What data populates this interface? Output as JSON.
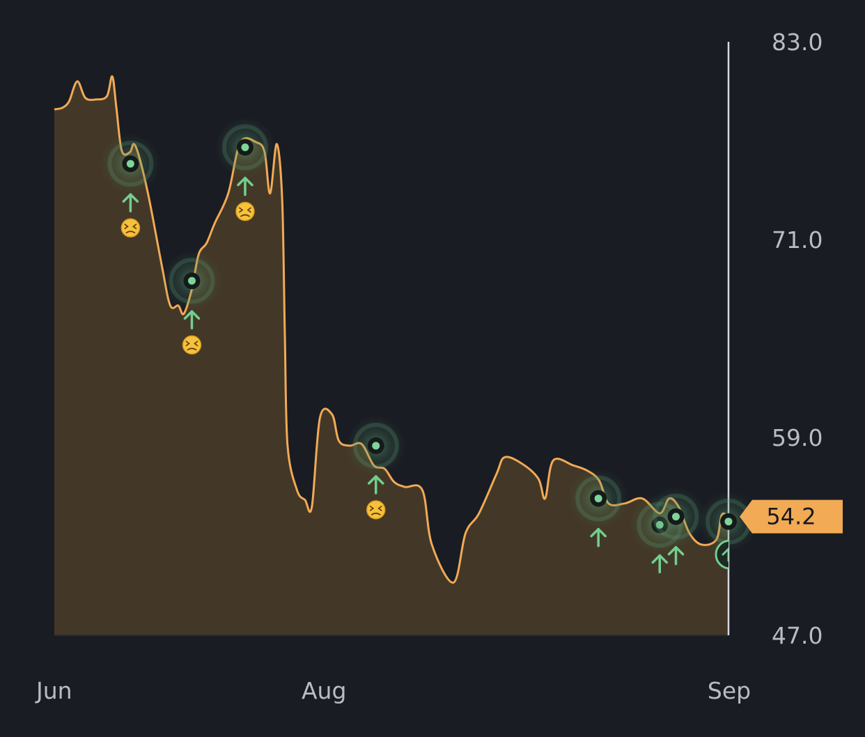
{
  "chart_data": {
    "type": "area",
    "y_ticks": [
      "83.0",
      "71.0",
      "59.0",
      "47.0"
    ],
    "ylim": [
      47,
      83
    ],
    "x_ticks": [
      {
        "label": "Jun",
        "t": 0
      },
      {
        "label": "Aug",
        "t": 0.4
      },
      {
        "label": "Sep",
        "t": 1.0
      }
    ],
    "current_value": "54.2",
    "colors": {
      "line": "#f2aa55",
      "fill": "#433828",
      "marker": "#7ed49a",
      "arrow": "#72cf8f",
      "axis": "#d6d8dc",
      "badge": "#f2aa55"
    },
    "series": [
      {
        "points": [
          [
            0.0,
            78.9
          ],
          [
            0.012,
            79.0
          ],
          [
            0.022,
            79.4
          ],
          [
            0.034,
            80.6
          ],
          [
            0.046,
            79.6
          ],
          [
            0.062,
            79.5
          ],
          [
            0.078,
            79.7
          ],
          [
            0.086,
            80.9
          ],
          [
            0.092,
            79.0
          ],
          [
            0.1,
            76.4
          ],
          [
            0.112,
            76.3
          ],
          [
            0.118,
            76.8
          ],
          [
            0.126,
            76.0
          ],
          [
            0.14,
            73.6
          ],
          [
            0.16,
            69.3
          ],
          [
            0.172,
            67.0
          ],
          [
            0.184,
            67.0
          ],
          [
            0.192,
            66.5
          ],
          [
            0.204,
            68.0
          ],
          [
            0.214,
            70.1
          ],
          [
            0.226,
            70.8
          ],
          [
            0.238,
            72.0
          ],
          [
            0.258,
            73.8
          ],
          [
            0.276,
            76.9
          ],
          [
            0.3,
            76.9
          ],
          [
            0.312,
            76.3
          ],
          [
            0.32,
            73.8
          ],
          [
            0.33,
            76.8
          ],
          [
            0.338,
            73.4
          ],
          [
            0.342,
            65.0
          ],
          [
            0.346,
            58.5
          ],
          [
            0.36,
            55.8
          ],
          [
            0.372,
            55.2
          ],
          [
            0.382,
            54.8
          ],
          [
            0.394,
            60.2
          ],
          [
            0.412,
            60.4
          ],
          [
            0.422,
            58.8
          ],
          [
            0.438,
            58.5
          ],
          [
            0.456,
            58.6
          ],
          [
            0.474,
            57.3
          ],
          [
            0.49,
            57.1
          ],
          [
            0.504,
            56.3
          ],
          [
            0.52,
            56.0
          ],
          [
            0.546,
            55.8
          ],
          [
            0.56,
            52.5
          ],
          [
            0.592,
            50.2
          ],
          [
            0.61,
            53.2
          ],
          [
            0.63,
            54.4
          ],
          [
            0.656,
            56.8
          ],
          [
            0.668,
            57.8
          ],
          [
            0.694,
            57.4
          ],
          [
            0.718,
            56.5
          ],
          [
            0.728,
            55.3
          ],
          [
            0.74,
            57.6
          ],
          [
            0.77,
            57.3
          ],
          [
            0.79,
            57.0
          ],
          [
            0.808,
            56.4
          ],
          [
            0.822,
            55.0
          ],
          [
            0.846,
            55.0
          ],
          [
            0.872,
            55.3
          ],
          [
            0.898,
            54.4
          ],
          [
            0.912,
            55.3
          ],
          [
            0.926,
            54.8
          ],
          [
            0.942,
            53.2
          ],
          [
            0.96,
            52.5
          ],
          [
            0.982,
            52.8
          ],
          [
            0.99,
            54.3
          ],
          [
            1.0,
            54.2
          ]
        ]
      }
    ],
    "events": [
      {
        "t": 0.113,
        "v": 75.6,
        "arrow": true,
        "emoji": true
      },
      {
        "t": 0.204,
        "v": 68.5,
        "arrow": true,
        "emoji": true
      },
      {
        "t": 0.283,
        "v": 76.6,
        "arrow": true,
        "emoji": true
      },
      {
        "t": 0.477,
        "v": 58.5,
        "arrow": true,
        "emoji": true
      },
      {
        "t": 0.807,
        "v": 55.3,
        "arrow": true,
        "emoji": false
      },
      {
        "t": 0.898,
        "v": 53.7,
        "arrow": true,
        "emoji": false
      },
      {
        "t": 0.922,
        "v": 54.2,
        "arrow": true,
        "emoji": false
      },
      {
        "t": 1.0,
        "v": 53.9,
        "arrow": false,
        "emoji": false
      }
    ]
  }
}
